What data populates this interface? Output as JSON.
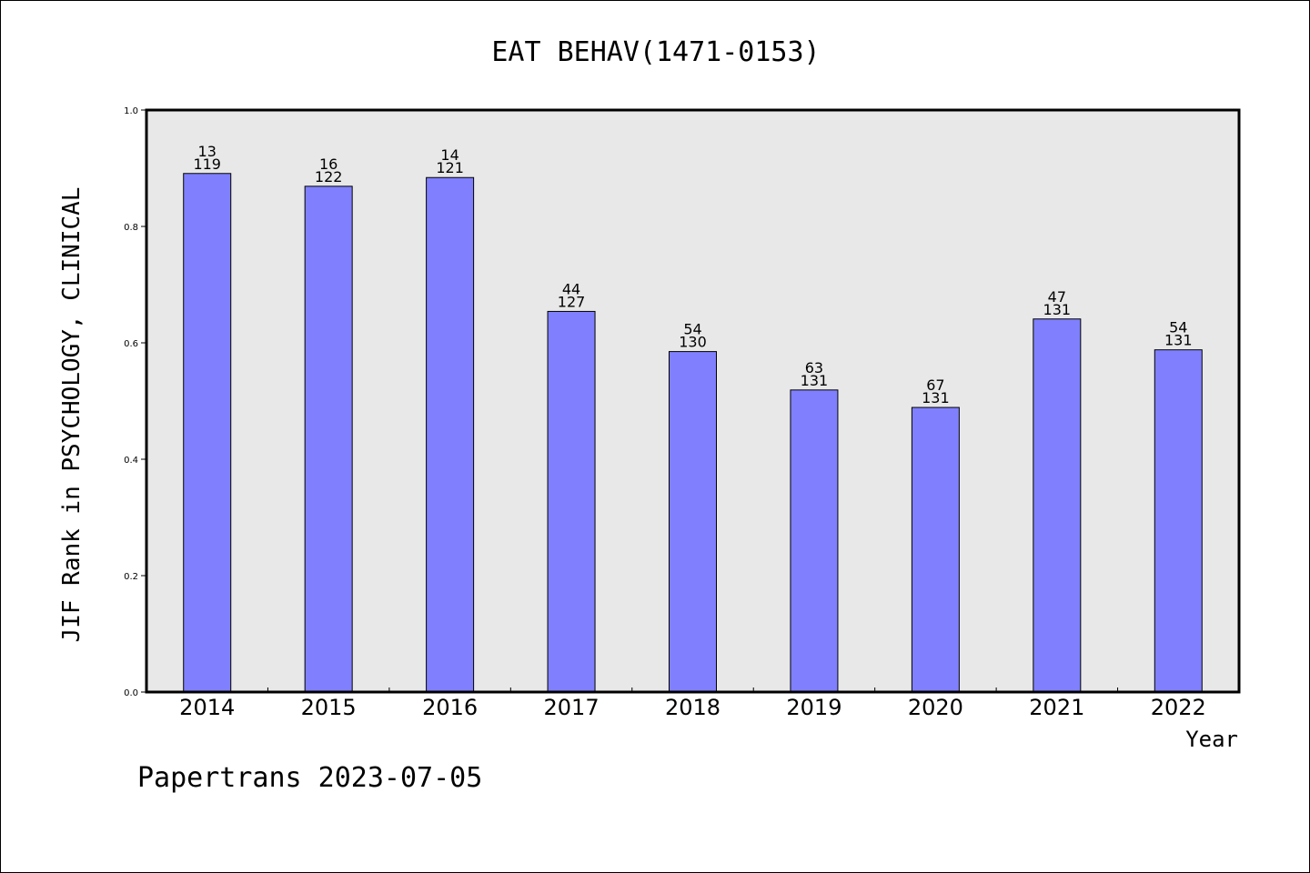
{
  "chart_data": {
    "type": "bar",
    "title": "EAT BEHAV(1471-0153)",
    "xlabel": "Year",
    "ylabel": "JIF Rank in PSYCHOLOGY, CLINICAL",
    "categories": [
      "2014",
      "2015",
      "2016",
      "2017",
      "2018",
      "2019",
      "2020",
      "2021",
      "2022"
    ],
    "values": [
      0.891,
      0.869,
      0.884,
      0.654,
      0.585,
      0.519,
      0.489,
      0.641,
      0.588
    ],
    "rank": [
      "13",
      "16",
      "14",
      "44",
      "54",
      "63",
      "67",
      "47",
      "54"
    ],
    "total": [
      "119",
      "122",
      "121",
      "127",
      "130",
      "131",
      "131",
      "131",
      "131"
    ],
    "ylim": [
      0.0,
      1.0
    ],
    "yticks": [
      "0.0",
      "0.2",
      "0.4",
      "0.6",
      "0.8",
      "1.0"
    ],
    "grid": false,
    "bar_color": "#8080ff",
    "plot_background": "#e8e8e8"
  },
  "footer": "Papertrans 2023-07-05"
}
